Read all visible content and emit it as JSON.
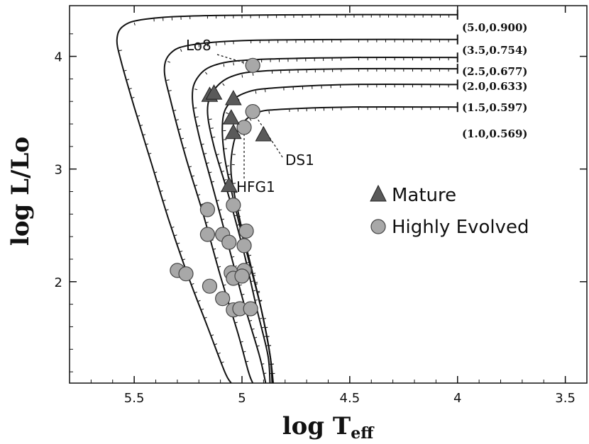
{
  "chart_data": {
    "type": "line",
    "xlabel": "log T",
    "xlabel_sub": "eff",
    "ylabel": "log L/Lo",
    "xlim": [
      5.8,
      3.4
    ],
    "ylim": [
      1.1,
      4.45
    ],
    "x_reversed": true,
    "x_ticks": [
      "5.5",
      "5",
      "4.5",
      "4",
      "3.5"
    ],
    "x_tick_values": [
      5.5,
      5.0,
      4.5,
      4.0,
      3.5
    ],
    "y_ticks": [
      "2",
      "3",
      "4"
    ],
    "y_tick_values": [
      2,
      3,
      4
    ],
    "grid": false,
    "legend_position": "right",
    "series": [
      {
        "name": "(5.0,0.900)",
        "kind": "track",
        "points": [
          [
            4.0,
            4.37
          ],
          [
            4.6,
            4.37
          ],
          [
            5.2,
            4.36
          ],
          [
            5.45,
            4.33
          ],
          [
            5.55,
            4.27
          ],
          [
            5.58,
            4.15
          ],
          [
            5.56,
            3.95
          ],
          [
            5.5,
            3.55
          ],
          [
            5.42,
            3.05
          ],
          [
            5.34,
            2.55
          ],
          [
            5.25,
            2.05
          ],
          [
            5.16,
            1.6
          ],
          [
            5.08,
            1.2
          ],
          [
            5.05,
            1.1
          ]
        ]
      },
      {
        "name": "(3.5,0.754)",
        "kind": "track",
        "points": [
          [
            4.0,
            4.15
          ],
          [
            4.5,
            4.15
          ],
          [
            5.0,
            4.14
          ],
          [
            5.24,
            4.1
          ],
          [
            5.33,
            4.03
          ],
          [
            5.36,
            3.88
          ],
          [
            5.33,
            3.6
          ],
          [
            5.26,
            3.1
          ],
          [
            5.18,
            2.6
          ],
          [
            5.1,
            2.05
          ],
          [
            5.02,
            1.55
          ],
          [
            4.97,
            1.2
          ],
          [
            4.95,
            1.1
          ]
        ]
      },
      {
        "name": "(2.5,0.677)",
        "kind": "track",
        "points": [
          [
            4.0,
            3.99
          ],
          [
            4.5,
            3.99
          ],
          [
            4.95,
            3.97
          ],
          [
            5.13,
            3.92
          ],
          [
            5.21,
            3.8
          ],
          [
            5.23,
            3.62
          ],
          [
            5.2,
            3.3
          ],
          [
            5.13,
            2.8
          ],
          [
            5.06,
            2.3
          ],
          [
            4.99,
            1.8
          ],
          [
            4.92,
            1.35
          ],
          [
            4.89,
            1.1
          ]
        ]
      },
      {
        "name": "(2.0,0.633)",
        "kind": "track",
        "points": [
          [
            4.0,
            3.89
          ],
          [
            4.5,
            3.89
          ],
          [
            4.9,
            3.87
          ],
          [
            5.05,
            3.82
          ],
          [
            5.13,
            3.7
          ],
          [
            5.16,
            3.52
          ],
          [
            5.13,
            3.2
          ],
          [
            5.06,
            2.75
          ],
          [
            4.99,
            2.25
          ],
          [
            4.93,
            1.75
          ],
          [
            4.88,
            1.35
          ],
          [
            4.87,
            1.1
          ]
        ]
      },
      {
        "name": "(1.5,0.597)",
        "kind": "track",
        "points": [
          [
            4.0,
            3.75
          ],
          [
            4.5,
            3.75
          ],
          [
            4.85,
            3.72
          ],
          [
            4.98,
            3.68
          ],
          [
            5.06,
            3.58
          ],
          [
            5.09,
            3.42
          ],
          [
            5.08,
            3.1
          ],
          [
            5.03,
            2.65
          ],
          [
            4.97,
            2.2
          ],
          [
            4.91,
            1.75
          ],
          [
            4.87,
            1.35
          ],
          [
            4.86,
            1.1
          ]
        ]
      },
      {
        "name": "(1.0,0.569)",
        "kind": "track",
        "points": [
          [
            4.0,
            3.55
          ],
          [
            4.5,
            3.55
          ],
          [
            4.82,
            3.53
          ],
          [
            4.93,
            3.5
          ],
          [
            5.0,
            3.4
          ],
          [
            5.04,
            3.22
          ],
          [
            5.05,
            2.95
          ],
          [
            5.01,
            2.55
          ],
          [
            4.96,
            2.15
          ],
          [
            4.91,
            1.75
          ],
          [
            4.87,
            1.35
          ],
          [
            4.855,
            1.1
          ]
        ]
      },
      {
        "name": "Mature",
        "kind": "triangle",
        "points": [
          [
            5.15,
            3.65
          ],
          [
            5.13,
            3.67
          ],
          [
            5.04,
            3.62
          ],
          [
            5.05,
            3.45
          ],
          [
            5.04,
            3.32
          ],
          [
            4.9,
            3.3
          ],
          [
            5.06,
            2.85
          ]
        ]
      },
      {
        "name": "Highly Evolved",
        "kind": "circle",
        "points": [
          [
            4.95,
            3.92
          ],
          [
            4.95,
            3.51
          ],
          [
            4.99,
            3.37
          ],
          [
            5.16,
            2.64
          ],
          [
            5.04,
            2.68
          ],
          [
            5.16,
            2.42
          ],
          [
            5.09,
            2.42
          ],
          [
            4.98,
            2.45
          ],
          [
            5.06,
            2.35
          ],
          [
            4.99,
            2.32
          ],
          [
            5.3,
            2.1
          ],
          [
            5.26,
            2.07
          ],
          [
            5.15,
            1.96
          ],
          [
            5.05,
            2.08
          ],
          [
            4.99,
            2.1
          ],
          [
            5.04,
            2.03
          ],
          [
            5.0,
            2.05
          ],
          [
            5.09,
            1.85
          ],
          [
            5.04,
            1.75
          ],
          [
            5.01,
            1.76
          ],
          [
            4.96,
            1.76
          ]
        ]
      }
    ],
    "annotations": [
      {
        "text": "Lo8",
        "target": [
          4.95,
          3.92
        ]
      },
      {
        "text": "DS1",
        "target": [
          4.95,
          3.51
        ]
      },
      {
        "text": "HFG1",
        "target": [
          4.99,
          3.37
        ]
      }
    ],
    "colors": {
      "track": "#111111",
      "marker_fill": "#a8a8a8",
      "triangle_fill": "#5a5a5a"
    }
  }
}
